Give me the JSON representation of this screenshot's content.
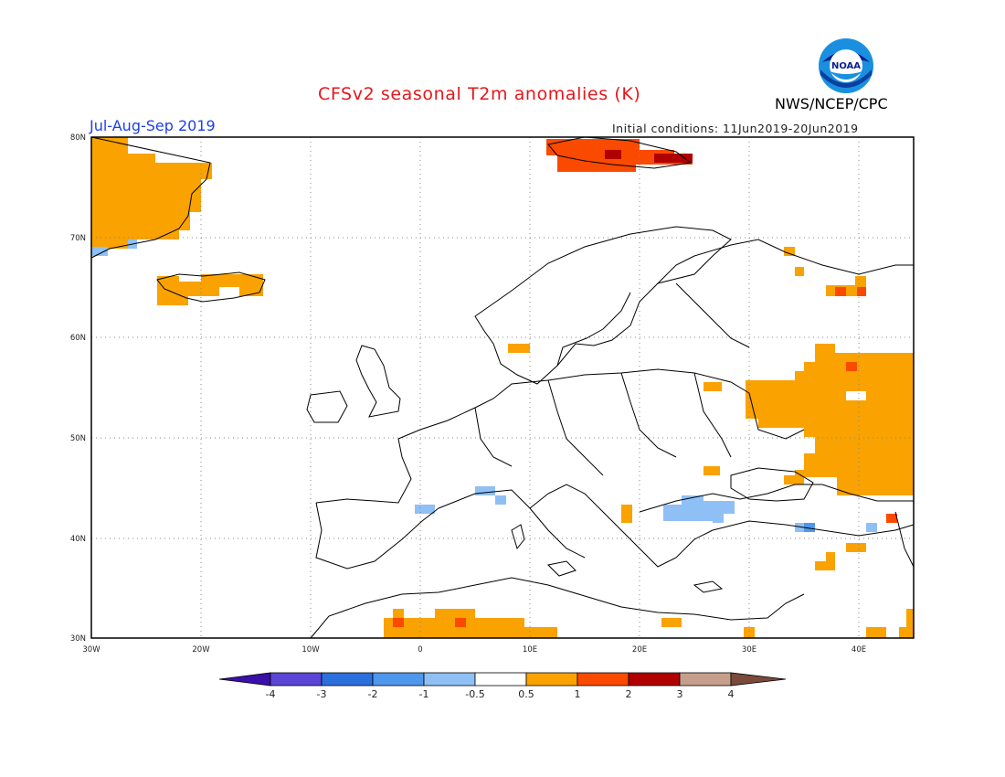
{
  "header": {
    "title": "CFSv2 seasonal T2m anomalies (K)",
    "season": "Jul-Aug-Sep 2019",
    "initial_conditions": "Initial conditions: 11Jun2019-20Jun2019",
    "agency": "NWS/NCEP/CPC",
    "logo_text": "NOAA"
  },
  "map": {
    "lon_labels": [
      "30W",
      "20W",
      "10W",
      "0",
      "10E",
      "20E",
      "30E",
      "40E"
    ],
    "lat_labels": [
      "80N",
      "70N",
      "60N",
      "50N",
      "40N",
      "30N"
    ]
  },
  "colorbar": {
    "labels": [
      "-4",
      "-3",
      "-2",
      "-1",
      "-0.5",
      "0.5",
      "1",
      "2",
      "3",
      "4"
    ],
    "colors": [
      "#3a10a8",
      "#5a45d6",
      "#2a6fdc",
      "#4e97ec",
      "#8fc0f5",
      "#ffffff",
      "#f9a200",
      "#fa4a00",
      "#b00000",
      "#c69f8c",
      "#7a4a3a"
    ]
  }
}
